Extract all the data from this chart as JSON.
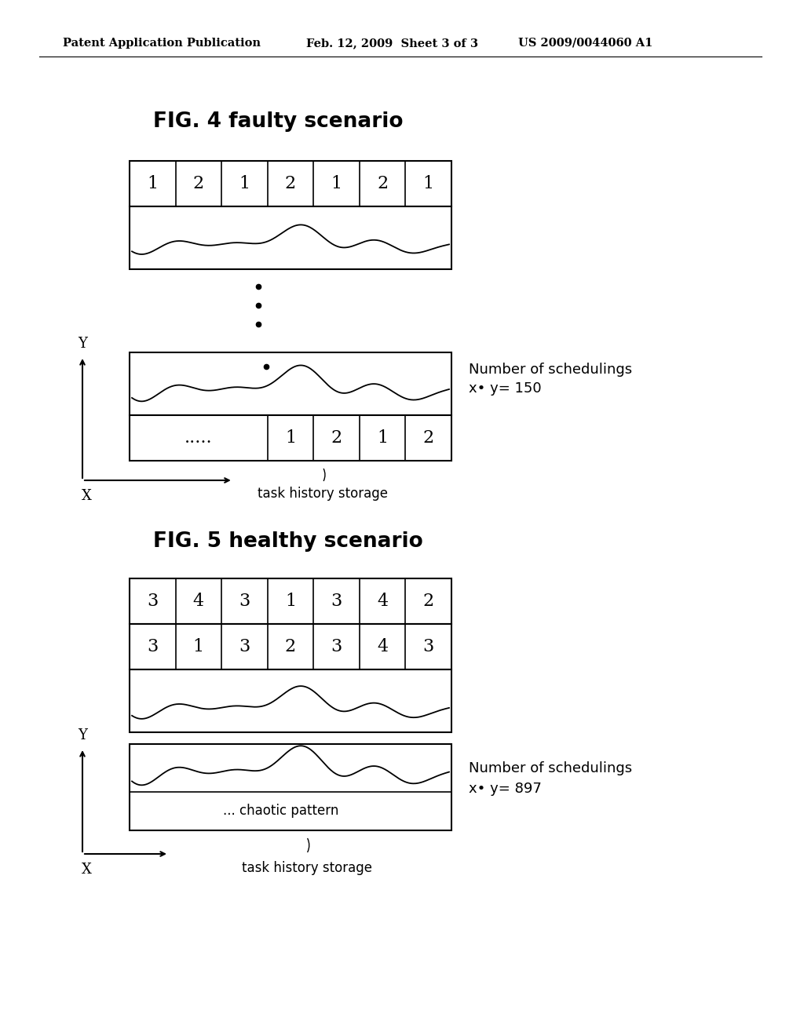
{
  "header_left": "Patent Application Publication",
  "header_mid": "Feb. 12, 2009  Sheet 3 of 3",
  "header_right": "US 2009/0044060 A1",
  "fig4_title": "FIG. 4 faulty scenario",
  "fig5_title": "FIG. 5 healthy scenario",
  "fig4_row1": [
    "1",
    "2",
    "1",
    "2",
    "1",
    "2",
    "1"
  ],
  "fig4_row_last_dots": ".....",
  "fig4_row_last_vals": [
    "1",
    "2",
    "1",
    "2"
  ],
  "fig5_row1": [
    "3",
    "4",
    "3",
    "1",
    "3",
    "4",
    "2"
  ],
  "fig5_row2": [
    "3",
    "1",
    "3",
    "2",
    "3",
    "4",
    "3"
  ],
  "fig4_label_schedulings": "Number of schedulings",
  "fig4_label_xy": "x• y= 150",
  "fig5_label_schedulings": "Number of schedulings",
  "fig5_label_xy": "x• y= 897",
  "task_history_storage": "task history storage",
  "chaotic_pattern": "... chaotic pattern",
  "background": "#ffffff",
  "line_color": "#000000"
}
